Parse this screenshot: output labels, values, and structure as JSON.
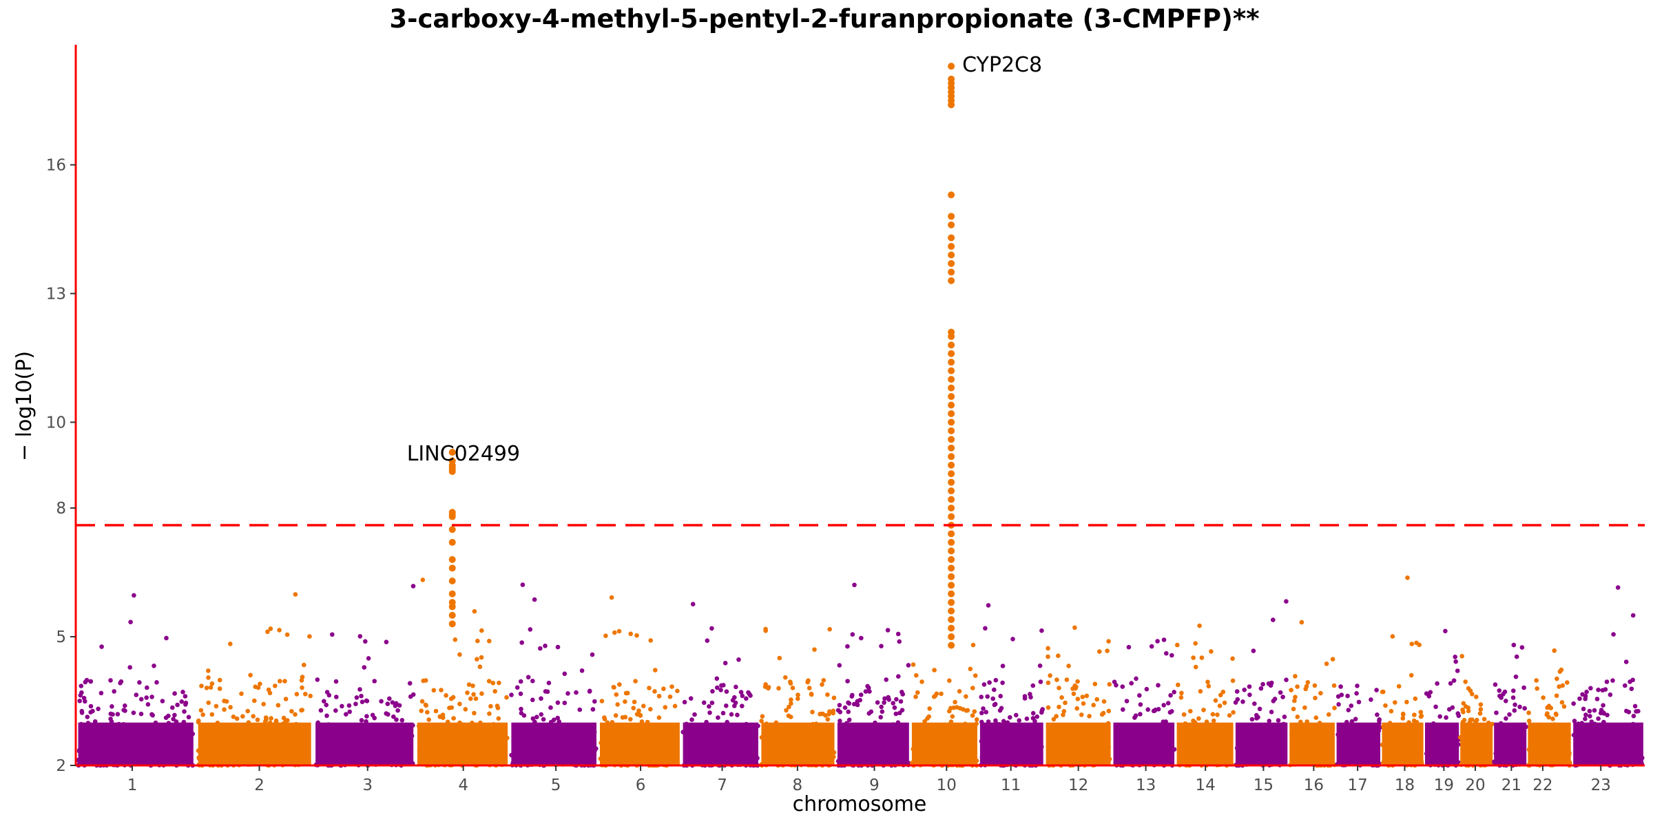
{
  "chart_data": {
    "type": "scatter",
    "subtype": "manhattan",
    "title": "3-carboxy-4-methyl-5-pentyl-2-furanpropionate (3-CMPFP)**",
    "xlabel": "chromosome",
    "ylabel": "− log10(P)",
    "ylim": [
      2,
      18.8
    ],
    "y_ticks": [
      2,
      5,
      8,
      10,
      13,
      16
    ],
    "threshold": 7.6,
    "threshold_color": "#ff0000",
    "axis_color": "#ff0000",
    "colors": {
      "odd": "#8b008b",
      "even": "#ee7600"
    },
    "chromosomes": [
      {
        "label": "1",
        "pos": 0.036
      },
      {
        "label": "2",
        "pos": 0.117
      },
      {
        "label": "3",
        "pos": 0.186
      },
      {
        "label": "4",
        "pos": 0.247
      },
      {
        "label": "5",
        "pos": 0.306
      },
      {
        "label": "6",
        "pos": 0.36
      },
      {
        "label": "7",
        "pos": 0.412
      },
      {
        "label": "8",
        "pos": 0.46
      },
      {
        "label": "9",
        "pos": 0.509
      },
      {
        "label": "10",
        "pos": 0.555
      },
      {
        "label": "11",
        "pos": 0.596
      },
      {
        "label": "12",
        "pos": 0.639
      },
      {
        "label": "13",
        "pos": 0.682
      },
      {
        "label": "14",
        "pos": 0.72
      },
      {
        "label": "15",
        "pos": 0.757
      },
      {
        "label": "16",
        "pos": 0.789
      },
      {
        "label": "17",
        "pos": 0.817
      },
      {
        "label": "18",
        "pos": 0.847
      },
      {
        "label": "19",
        "pos": 0.872
      },
      {
        "label": "20",
        "pos": 0.892
      },
      {
        "label": "21",
        "pos": 0.915
      },
      {
        "label": "22",
        "pos": 0.935
      },
      {
        "label": "23",
        "pos": 0.972
      }
    ],
    "peaks": [
      {
        "label": "LINC02499",
        "chromosome": "4",
        "pos": 0.24,
        "top": 9.3,
        "values": [
          9.1,
          9.0,
          8.95,
          8.9,
          8.85,
          7.9,
          7.85,
          7.8,
          7.5,
          7.2,
          6.8,
          6.6,
          6.3,
          6.0,
          5.8,
          5.7,
          5.5,
          5.3
        ]
      },
      {
        "label": "CYP2C8",
        "chromosome": "10",
        "pos": 0.558,
        "top": 18.3,
        "values": [
          18.0,
          17.9,
          17.8,
          17.7,
          17.6,
          17.5,
          17.4,
          15.3,
          14.8,
          14.6,
          14.3,
          14.1,
          13.9,
          13.7,
          13.5,
          13.3,
          12.1,
          12.0,
          11.8,
          11.6,
          11.4,
          11.2,
          11.0,
          10.8,
          10.6,
          10.4,
          10.2,
          10.0,
          9.8,
          9.6,
          9.4,
          9.2,
          9.0,
          8.8,
          8.6,
          8.4,
          8.2,
          8.0,
          7.8,
          7.6,
          7.4,
          7.2,
          7.0,
          6.8,
          6.6,
          6.4,
          6.2,
          6.0,
          5.8,
          5.6,
          5.4,
          5.2,
          5.0,
          4.8
        ]
      }
    ]
  }
}
